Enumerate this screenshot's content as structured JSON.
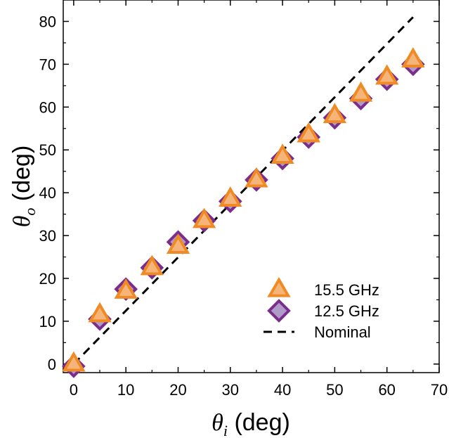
{
  "chart_data": {
    "type": "scatter",
    "title": "",
    "xlabel": {
      "symbol": "θ",
      "subscript": "i",
      "unit": "(deg)"
    },
    "ylabel": {
      "symbol": "θ",
      "subscript": "o",
      "unit": "(deg)"
    },
    "xlim": [
      -2,
      70
    ],
    "ylim": [
      -2,
      85
    ],
    "xticks": [
      0,
      10,
      20,
      30,
      40,
      50,
      60,
      70
    ],
    "yticks": [
      0,
      10,
      20,
      30,
      40,
      50,
      60,
      70,
      80
    ],
    "grid": false,
    "legend_position": "bottom-right",
    "series": [
      {
        "name": "15.5 GHz",
        "marker": "triangle",
        "color": "#f08a24",
        "x": [
          0,
          5,
          10,
          15,
          20,
          25,
          30,
          35,
          40,
          45,
          50,
          55,
          60,
          65
        ],
        "y": [
          0,
          11.5,
          17,
          22.5,
          27.5,
          33.5,
          38.5,
          43,
          48.5,
          53.5,
          58,
          63,
          67,
          71
        ]
      },
      {
        "name": "12.5 GHz",
        "marker": "diamond",
        "color": "#7b2d8b",
        "fill": "#b09ac8",
        "x": [
          0,
          5,
          10,
          15,
          20,
          25,
          30,
          35,
          40,
          45,
          50,
          55,
          60,
          65
        ],
        "y": [
          -0.5,
          10.5,
          17.5,
          22.5,
          28.5,
          33.5,
          38,
          43,
          48,
          53,
          57.5,
          62,
          66.5,
          70
        ]
      },
      {
        "name": "Nominal",
        "marker": "dashed-line",
        "color": "#000000",
        "x": [
          0,
          65
        ],
        "y": [
          0,
          81
        ]
      }
    ]
  }
}
